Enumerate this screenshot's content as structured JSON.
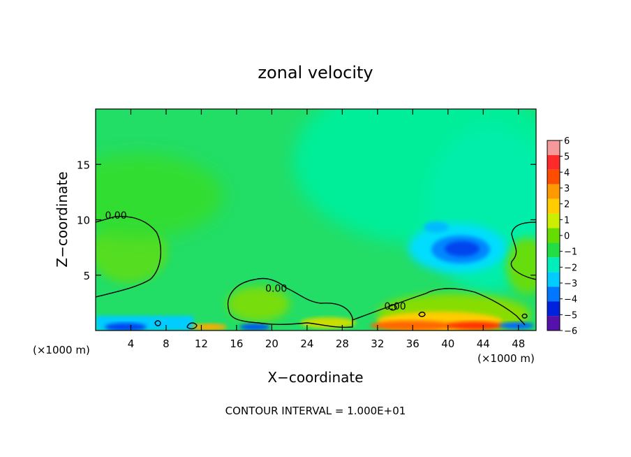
{
  "chart_data": {
    "type": "heatmap",
    "title": "zonal velocity",
    "xlabel": "X−coordinate",
    "ylabel": "Z−coordinate",
    "x_unit_left": "(×1000 m)",
    "x_unit_right": "(×1000 m)",
    "footer": "CONTOUR INTERVAL = 1.000E+01",
    "xlim": [
      0,
      50
    ],
    "ylim": [
      0,
      20
    ],
    "x_ticks": [
      4,
      8,
      12,
      16,
      20,
      24,
      28,
      32,
      36,
      40,
      44,
      48
    ],
    "x_tick_labels": [
      "4",
      "8",
      "12",
      "16",
      "20",
      "24",
      "28",
      "32",
      "36",
      "40",
      "44",
      "48"
    ],
    "y_ticks": [
      5,
      10,
      15
    ],
    "y_tick_labels": [
      "5",
      "10",
      "15"
    ],
    "contour_labels": [
      {
        "text": "0.00",
        "x": 2.3,
        "y": 10.1
      },
      {
        "text": "0.00",
        "x": 20.5,
        "y": 3.5
      },
      {
        "text": "0.00",
        "x": 34.0,
        "y": 1.9
      }
    ],
    "colorbar": {
      "levels": [
        6,
        5,
        4,
        3,
        2,
        1,
        0,
        -1,
        -2,
        -3,
        -4,
        -5,
        -6
      ],
      "labels": [
        "6",
        "5",
        "4",
        "3",
        "2",
        "1",
        "0",
        "−1",
        "−2",
        "−3",
        "−4",
        "−5",
        "−6"
      ],
      "colors": [
        "#f49a9a",
        "#ff2a2a",
        "#ff4d00",
        "#ff9900",
        "#ffcc00",
        "#ccee00",
        "#66dd00",
        "#22dd44",
        "#00eebb",
        "#00ccff",
        "#0077ff",
        "#0022dd",
        "#5511aa"
      ]
    },
    "field_features": [
      {
        "description": "weak easterly jet core",
        "x": 41,
        "z": 7.3,
        "value": -4
      },
      {
        "description": "westerly maximum near surface",
        "x": 40,
        "z": 0.6,
        "value": 5
      }
    ]
  }
}
